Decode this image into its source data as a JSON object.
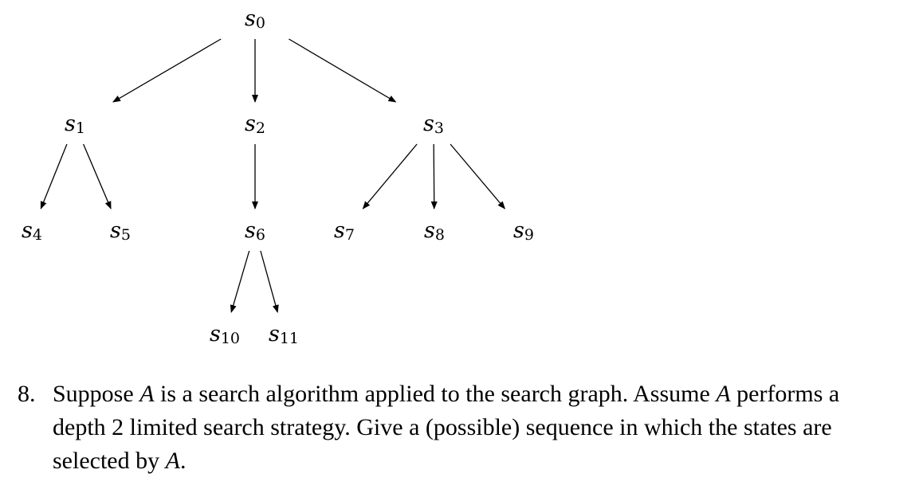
{
  "diagram": {
    "nodes": [
      {
        "id": "s0",
        "base": "s",
        "sub": "0"
      },
      {
        "id": "s1",
        "base": "s",
        "sub": "1"
      },
      {
        "id": "s2",
        "base": "s",
        "sub": "2"
      },
      {
        "id": "s3",
        "base": "s",
        "sub": "3"
      },
      {
        "id": "s4",
        "base": "s",
        "sub": "4"
      },
      {
        "id": "s5",
        "base": "s",
        "sub": "5"
      },
      {
        "id": "s6",
        "base": "s",
        "sub": "6"
      },
      {
        "id": "s7",
        "base": "s",
        "sub": "7"
      },
      {
        "id": "s8",
        "base": "s",
        "sub": "8"
      },
      {
        "id": "s9",
        "base": "s",
        "sub": "9"
      },
      {
        "id": "s10",
        "base": "s",
        "sub": "10"
      },
      {
        "id": "s11",
        "base": "s",
        "sub": "11"
      }
    ],
    "edges": [
      [
        "s0",
        "s1"
      ],
      [
        "s0",
        "s2"
      ],
      [
        "s0",
        "s3"
      ],
      [
        "s1",
        "s4"
      ],
      [
        "s1",
        "s5"
      ],
      [
        "s2",
        "s6"
      ],
      [
        "s3",
        "s7"
      ],
      [
        "s3",
        "s8"
      ],
      [
        "s3",
        "s9"
      ],
      [
        "s6",
        "s10"
      ],
      [
        "s6",
        "s11"
      ]
    ]
  },
  "question": {
    "number": "8.",
    "line1_a": "Suppose ",
    "var1": "A",
    "line1_b": " is a search algorithm applied to the search graph.  Assume ",
    "var2": "A",
    "line2": " performs a depth 2 limited search strategy.  Give a (possible) sequence in which the states are selected by ",
    "var3": "A",
    "end": "."
  }
}
